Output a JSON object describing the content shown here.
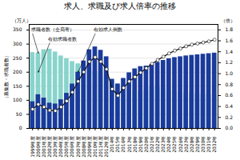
{
  "chart_data": {
    "type": "bar",
    "title": "求人、求職及び求人倍率の推移",
    "ylabel": "（募集数・求職者数）",
    "y_unit": "（万人）",
    "y2_unit": "（倍）",
    "categories": [
      "1999年度",
      "2000年度",
      "2001年度",
      "2002年度",
      "2003年度",
      "2004年度",
      "2005年度",
      "2006年度",
      "2007年度",
      "2008年度",
      "2009年度",
      "2010年度",
      "2011年度",
      "2012年度",
      "2014年",
      "2015年",
      "2016年",
      "2017年",
      "2018年",
      "2019年",
      "2020年",
      "2021年",
      "2022年",
      "2023年",
      "2024年",
      "2025年",
      "2026年",
      "2027年",
      "2028年",
      "2029年",
      "2030年",
      "2031年",
      "2032年"
    ],
    "stacked": false,
    "series": [
      {
        "type": "bar",
        "color": "#88d4cc",
        "values": [
          270,
          268,
          280,
          282,
          272,
          258,
          248,
          238,
          230,
          220,
          210,
          202,
          193,
          182,
          168,
          158,
          148,
          143,
          138,
          133,
          138,
          148,
          145,
          140,
          136,
          133,
          130,
          128,
          126,
          124,
          122,
          120,
          118
        ]
      },
      {
        "type": "bar",
        "color": "#1a3a9c",
        "values": [
          95,
          120,
          108,
          90,
          87,
          102,
          125,
          158,
          200,
          240,
          280,
          290,
          278,
          255,
          175,
          158,
          178,
          198,
          212,
          220,
          222,
          228,
          235,
          242,
          248,
          252,
          255,
          258,
          260,
          262,
          264,
          266,
          268
        ]
      },
      {
        "type": "line",
        "axis": "y2",
        "color": "#111111",
        "marker": "circle",
        "values": [
          0.35,
          0.44,
          0.39,
          0.33,
          0.32,
          0.39,
          0.5,
          0.66,
          0.86,
          1.03,
          1.22,
          1.3,
          1.22,
          1.08,
          0.72,
          0.6,
          0.74,
          0.86,
          0.94,
          1.02,
          1.1,
          1.18,
          1.25,
          1.31,
          1.37,
          1.42,
          1.46,
          1.5,
          1.53,
          1.55,
          1.57,
          1.59,
          1.62
        ]
      }
    ],
    "ylim": [
      0,
      370
    ],
    "yticks": [
      0,
      50,
      100,
      150,
      200,
      250,
      300,
      350
    ],
    "y2lim": [
      0.0,
      1.9
    ],
    "y2ticks": [
      {
        "value": 0,
        "label": "0.0"
      },
      0.2,
      0.4,
      0.6,
      0.8,
      {
        "value": 1,
        "label": "1.0"
      },
      1.2,
      1.4,
      1.6,
      1.8
    ],
    "grid": true,
    "annotations": [
      {
        "text": "有効求人倒数",
        "x": "2007年度",
        "y": 200
      },
      {
        "text": "求職者数（全局寄）",
        "x": "2000年度",
        "y": 268
      },
      {
        "text": "有効求職者数",
        "x": "2000年度",
        "y": 200
      }
    ]
  }
}
